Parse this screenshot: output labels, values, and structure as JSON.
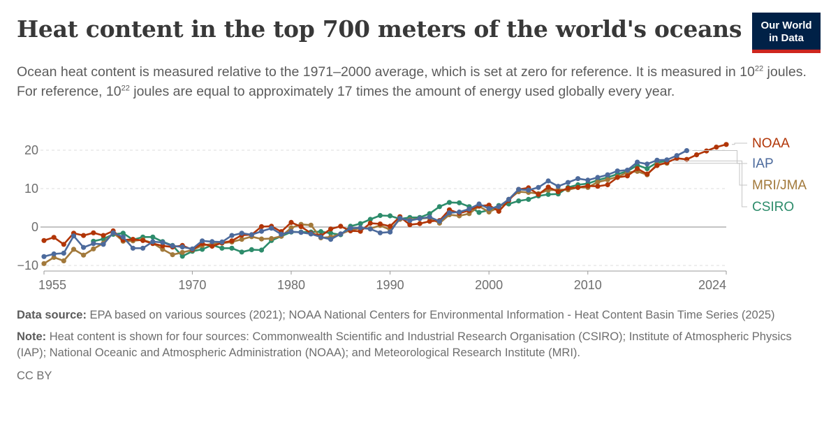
{
  "header": {
    "title": "Heat content in the top 700 meters of the world's oceans",
    "subtitle_part1": "Ocean heat content is measured relative to the 1971–2000 average, which is set at zero for reference. It is measured in 10",
    "subtitle_sup1": "22",
    "subtitle_part2": " joules. For reference, 10",
    "subtitle_sup2": "22",
    "subtitle_part3": " joules are equal to approximately 17 times the amount of energy used globally every year."
  },
  "logo": {
    "line1": "Our World",
    "line2": "in Data"
  },
  "footer": {
    "source_label": "Data source:",
    "source_text": " EPA based on various sources (2021); NOAA National Centers for Environmental Information - Heat Content Basin Time Series (2025)",
    "note_label": "Note:",
    "note_text": " Heat content is shown for four sources: Commonwealth Scientific and Industrial Research Organisation (CSIRO); Institute of Atmospheric Physics (IAP); National Oceanic and Atmospheric Administration (NOAA); and Meteorological Research Institute (MRI).",
    "license": "CC BY"
  },
  "chart_data": {
    "type": "line",
    "title": "Heat content in the top 700 meters of the world's oceans",
    "xlabel": "",
    "ylabel": "",
    "xlim": [
      1955,
      2024
    ],
    "ylim": [
      -10,
      21
    ],
    "x_ticks": [
      1955,
      1970,
      1980,
      1990,
      2000,
      2010,
      2024
    ],
    "y_ticks": [
      -10,
      0,
      10,
      20
    ],
    "grid": "horizontal dashed",
    "legend_position": "right, labels at line ends",
    "series": [
      {
        "name": "NOAA",
        "color": "#b13507",
        "x": [
          1955,
          1956,
          1957,
          1958,
          1959,
          1960,
          1961,
          1962,
          1963,
          1964,
          1965,
          1966,
          1967,
          1968,
          1969,
          1970,
          1971,
          1972,
          1973,
          1974,
          1975,
          1976,
          1977,
          1978,
          1979,
          1980,
          1981,
          1982,
          1983,
          1984,
          1985,
          1986,
          1987,
          1988,
          1989,
          1990,
          1991,
          1992,
          1993,
          1994,
          1995,
          1996,
          1997,
          1998,
          1999,
          2000,
          2001,
          2002,
          2003,
          2004,
          2005,
          2006,
          2007,
          2008,
          2009,
          2010,
          2011,
          2012,
          2013,
          2014,
          2015,
          2016,
          2017,
          2018,
          2019,
          2020,
          2021,
          2022,
          2023,
          2024
        ],
        "values": [
          -3.5,
          -2.7,
          -4.5,
          -1.6,
          -2.2,
          -1.5,
          -2.2,
          -1.0,
          -3.4,
          -3.2,
          -3.5,
          -4.3,
          -4.9,
          -5.2,
          -4.8,
          -5.9,
          -4.3,
          -5.0,
          -4.1,
          -3.6,
          -2.1,
          -2.0,
          0.1,
          0.2,
          -1.2,
          1.2,
          0.1,
          -1.6,
          -2.3,
          -0.5,
          0.2,
          -1.0,
          -1.1,
          1.0,
          0.8,
          0.2,
          2.7,
          0.6,
          0.9,
          1.5,
          1.7,
          4.5,
          3.6,
          4.3,
          5.5,
          5.7,
          4.1,
          6.9,
          9.8,
          10.2,
          8.5,
          10.4,
          9.2,
          10.1,
          10.3,
          10.7,
          10.6,
          11.0,
          12.9,
          13.3,
          15.2,
          13.8,
          16.0,
          16.8,
          17.9,
          17.6,
          18.8,
          19.8,
          20.8,
          21.5
        ]
      },
      {
        "name": "IAP",
        "color": "#4c6a9c",
        "x": [
          1955,
          1956,
          1957,
          1958,
          1959,
          1960,
          1961,
          1962,
          1963,
          1964,
          1965,
          1966,
          1967,
          1968,
          1969,
          1970,
          1971,
          1972,
          1973,
          1974,
          1975,
          1976,
          1977,
          1978,
          1979,
          1980,
          1981,
          1982,
          1983,
          1984,
          1985,
          1986,
          1987,
          1988,
          1989,
          1990,
          1991,
          1992,
          1993,
          1994,
          1995,
          1996,
          1997,
          1998,
          1999,
          2000,
          2001,
          2002,
          2003,
          2004,
          2005,
          2006,
          2007,
          2008,
          2009,
          2010,
          2011,
          2012,
          2013,
          2014,
          2015,
          2016,
          2017,
          2018,
          2019,
          2020,
          2021
        ],
        "values": [
          -7.7,
          -7.0,
          -6.8,
          -2.3,
          -5.3,
          -4.3,
          -4.5,
          -1.5,
          -2.6,
          -5.5,
          -5.5,
          -3.8,
          -4.0,
          -4.9,
          -5.2,
          -5.7,
          -3.6,
          -3.8,
          -3.9,
          -2.2,
          -1.6,
          -2.0,
          -1.1,
          -0.3,
          -1.9,
          -1.2,
          -1.4,
          -1.8,
          -2.6,
          -3.2,
          -1.8,
          -0.3,
          -0.2,
          -0.5,
          -1.5,
          -1.3,
          2.3,
          1.7,
          2.2,
          2.6,
          1.5,
          3.7,
          3.9,
          4.7,
          6.0,
          4.8,
          5.3,
          7.2,
          9.8,
          9.6,
          10.3,
          12.0,
          10.6,
          11.6,
          12.6,
          12.2,
          12.9,
          13.6,
          14.6,
          14.8,
          16.9,
          16.4,
          17.4,
          17.5,
          18.6,
          19.9,
          null
        ]
      },
      {
        "name": "MRI/JMA",
        "color": "#a2793b",
        "x": [
          1955,
          1956,
          1957,
          1958,
          1959,
          1960,
          1961,
          1962,
          1963,
          1964,
          1965,
          1966,
          1967,
          1968,
          1969,
          1970,
          1971,
          1972,
          1973,
          1974,
          1975,
          1976,
          1977,
          1978,
          1979,
          1980,
          1981,
          1982,
          1983,
          1984,
          1985,
          1986,
          1987,
          1988,
          1989,
          1990,
          1991,
          1992,
          1993,
          1994,
          1995,
          1996,
          1997,
          1998,
          1999,
          2000,
          2001,
          2002,
          2003,
          2004,
          2005,
          2006,
          2007,
          2008,
          2009,
          2010,
          2011,
          2012,
          2013,
          2014,
          2015,
          2016,
          2017,
          2018,
          2019,
          2020,
          2021
        ],
        "values": [
          -9.5,
          -7.9,
          -8.8,
          -5.8,
          -7.3,
          -5.7,
          -4.2,
          -1.5,
          -3.7,
          -3.6,
          -3.3,
          -4.2,
          -5.8,
          -7.2,
          -6.6,
          -6.0,
          -4.8,
          -4.4,
          -4.2,
          -3.9,
          -3.2,
          -2.5,
          -3.1,
          -3.0,
          -2.4,
          -0.2,
          0.7,
          0.5,
          -2.8,
          -2.6,
          -1.8,
          -0.8,
          -0.3,
          -0.4,
          0.4,
          -0.7,
          2.0,
          1.9,
          2.2,
          2.4,
          1.0,
          3.2,
          2.9,
          3.5,
          5.4,
          3.9,
          5.1,
          7.2,
          9.2,
          9.0,
          8.7,
          9.6,
          9.7,
          9.7,
          10.3,
          10.3,
          11.7,
          12.3,
          13.1,
          14.2,
          14.5,
          13.6,
          16.3,
          16.6,
          null,
          null,
          null
        ]
      },
      {
        "name": "CSIRO",
        "color": "#2d8c6b",
        "x": [
          1960,
          1961,
          1962,
          1963,
          1964,
          1965,
          1966,
          1967,
          1968,
          1969,
          1970,
          1971,
          1972,
          1973,
          1974,
          1975,
          1976,
          1977,
          1978,
          1979,
          1980,
          1981,
          1982,
          1983,
          1984,
          1985,
          1986,
          1987,
          1988,
          1989,
          1990,
          1991,
          1992,
          1993,
          1994,
          1995,
          1996,
          1997,
          1998,
          1999,
          2000,
          2001,
          2002,
          2003,
          2004,
          2005,
          2006,
          2007,
          2008,
          2009,
          2010,
          2011,
          2012,
          2013,
          2014,
          2015,
          2016,
          2017,
          2018,
          2019,
          2020
        ],
        "values": [
          -3.7,
          -3.1,
          -1.9,
          -1.6,
          -3.3,
          -2.6,
          -2.6,
          -3.8,
          -4.8,
          -7.6,
          -6.3,
          -5.8,
          -4.7,
          -5.5,
          -5.5,
          -6.5,
          -5.9,
          -6.0,
          -3.5,
          -2.4,
          -1.3,
          -1.3,
          -1.3,
          -1.2,
          -1.6,
          -2.0,
          0.2,
          0.9,
          2.0,
          3.0,
          2.9,
          2.1,
          2.5,
          2.5,
          3.5,
          5.3,
          6.4,
          6.3,
          5.3,
          3.8,
          4.4,
          5.6,
          6.0,
          6.8,
          7.2,
          8.1,
          8.5,
          8.6,
          10.3,
          11.0,
          11.3,
          12.2,
          12.9,
          13.8,
          14.5,
          16.1,
          15.2,
          16.8,
          17.2,
          null,
          null
        ]
      }
    ]
  }
}
